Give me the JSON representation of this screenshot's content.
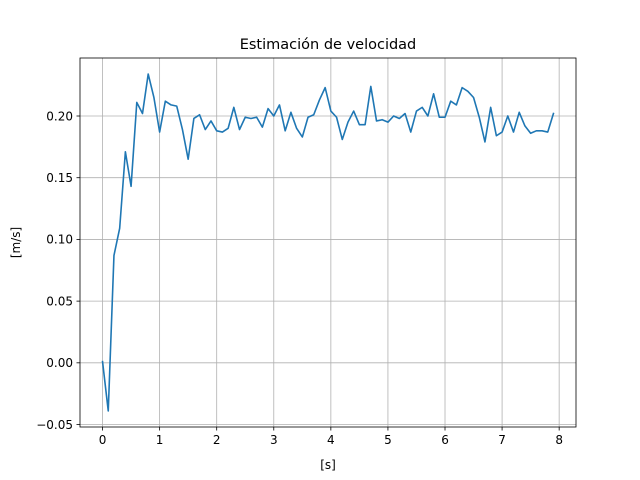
{
  "chart_data": {
    "type": "line",
    "title": "Estimación de velocidad",
    "xlabel": "[s]",
    "ylabel": "[m/s]",
    "xlim": [
      -0.395,
      8.295
    ],
    "ylim": [
      -0.052,
      0.247
    ],
    "grid": true,
    "x_ticks": [
      0,
      1,
      2,
      3,
      4,
      5,
      6,
      7,
      8
    ],
    "x_tick_labels": [
      "0",
      "1",
      "2",
      "3",
      "4",
      "5",
      "6",
      "7",
      "8"
    ],
    "y_ticks": [
      -0.05,
      0.0,
      0.05,
      0.1,
      0.15,
      0.2
    ],
    "y_tick_labels": [
      "−0.05",
      "0.00",
      "0.05",
      "0.10",
      "0.15",
      "0.20"
    ],
    "series": [
      {
        "color": "#1f77b4",
        "x": [
          0.0,
          0.1,
          0.2,
          0.3,
          0.4,
          0.5,
          0.6,
          0.7,
          0.8,
          0.9,
          1.0,
          1.1,
          1.2,
          1.3,
          1.4,
          1.5,
          1.6,
          1.7,
          1.8,
          1.9,
          2.0,
          2.1,
          2.2,
          2.3,
          2.4,
          2.5,
          2.6,
          2.7,
          2.8,
          2.9,
          3.0,
          3.1,
          3.2,
          3.3,
          3.4,
          3.5,
          3.6,
          3.7,
          3.8,
          3.9,
          4.0,
          4.1,
          4.2,
          4.3,
          4.4,
          4.5,
          4.6,
          4.7,
          4.8,
          4.9,
          5.0,
          5.1,
          5.2,
          5.3,
          5.4,
          5.5,
          5.6,
          5.7,
          5.8,
          5.9,
          6.0,
          6.1,
          6.2,
          6.3,
          6.4,
          6.5,
          6.6,
          6.7,
          6.8,
          6.9,
          7.0,
          7.1,
          7.2,
          7.3,
          7.4,
          7.5,
          7.6,
          7.7,
          7.8,
          7.9
        ],
        "y": [
          0.001,
          -0.039,
          0.087,
          0.109,
          0.171,
          0.143,
          0.211,
          0.202,
          0.234,
          0.215,
          0.187,
          0.212,
          0.209,
          0.208,
          0.189,
          0.165,
          0.198,
          0.201,
          0.189,
          0.196,
          0.188,
          0.187,
          0.19,
          0.207,
          0.189,
          0.199,
          0.198,
          0.199,
          0.191,
          0.206,
          0.2,
          0.209,
          0.188,
          0.203,
          0.19,
          0.183,
          0.199,
          0.201,
          0.213,
          0.223,
          0.204,
          0.199,
          0.181,
          0.195,
          0.204,
          0.193,
          0.193,
          0.224,
          0.196,
          0.197,
          0.195,
          0.2,
          0.198,
          0.202,
          0.187,
          0.204,
          0.207,
          0.2,
          0.218,
          0.199,
          0.199,
          0.212,
          0.209,
          0.223,
          0.22,
          0.215,
          0.199,
          0.179,
          0.207,
          0.184,
          0.187,
          0.2,
          0.187,
          0.203,
          0.192,
          0.186,
          0.188,
          0.188,
          0.187,
          0.202
        ]
      }
    ]
  }
}
